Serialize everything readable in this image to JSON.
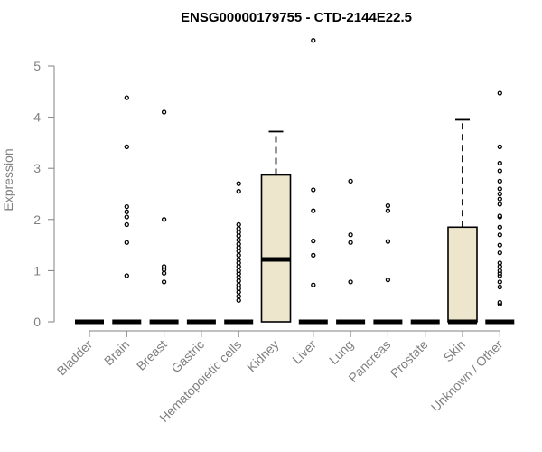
{
  "chart_data": {
    "type": "box",
    "title": "ENSG00000179755 - CTD-2144E22.5",
    "ylabel": "Expression",
    "xlabel": "",
    "ylim": [
      0,
      5.5
    ],
    "yticks": [
      0,
      1,
      2,
      3,
      4,
      5
    ],
    "categories": [
      "Bladder",
      "Brain",
      "Breast",
      "Gastric",
      "Hematopoietic cells",
      "Kidney",
      "Liver",
      "Lung",
      "Pancreas",
      "Prostate",
      "Skin",
      "Unknown / Other"
    ],
    "box_fill": "#ede6cc",
    "grid": false,
    "boxes": [
      {
        "q1": 0,
        "median": 0,
        "q3": 0,
        "whisker_low": 0,
        "whisker_high": 0,
        "outliers": []
      },
      {
        "q1": 0,
        "median": 0,
        "q3": 0,
        "whisker_low": 0,
        "whisker_high": 0,
        "outliers": [
          0.9,
          1.55,
          1.9,
          2.05,
          2.15,
          2.25,
          3.42,
          4.38
        ]
      },
      {
        "q1": 0,
        "median": 0,
        "q3": 0,
        "whisker_low": 0,
        "whisker_high": 0,
        "outliers": [
          0.78,
          0.95,
          1.02,
          1.08,
          2.0,
          4.1
        ]
      },
      {
        "q1": 0,
        "median": 0,
        "q3": 0,
        "whisker_low": 0,
        "whisker_high": 0,
        "outliers": []
      },
      {
        "q1": 0,
        "median": 0,
        "q3": 0,
        "whisker_low": 0,
        "whisker_high": 0,
        "outliers": [
          0.42,
          0.5,
          0.58,
          0.65,
          0.72,
          0.8,
          0.87,
          0.94,
          1.0,
          1.08,
          1.15,
          1.22,
          1.3,
          1.38,
          1.45,
          1.52,
          1.6,
          1.68,
          1.75,
          1.82,
          1.9,
          2.55,
          2.7
        ]
      },
      {
        "q1": 0,
        "median": 1.22,
        "q3": 2.87,
        "whisker_low": 0,
        "whisker_high": 3.72,
        "outliers": []
      },
      {
        "q1": 0,
        "median": 0,
        "q3": 0,
        "whisker_low": 0,
        "whisker_high": 0,
        "outliers": [
          0.72,
          1.3,
          1.58,
          2.17,
          2.58,
          5.5
        ]
      },
      {
        "q1": 0,
        "median": 0,
        "q3": 0,
        "whisker_low": 0,
        "whisker_high": 0,
        "outliers": [
          0.78,
          1.55,
          1.7,
          2.75
        ]
      },
      {
        "q1": 0,
        "median": 0,
        "q3": 0,
        "whisker_low": 0,
        "whisker_high": 0,
        "outliers": [
          0.82,
          1.57,
          2.17,
          2.27
        ]
      },
      {
        "q1": 0,
        "median": 0,
        "q3": 0,
        "whisker_low": 0,
        "whisker_high": 0,
        "outliers": []
      },
      {
        "q1": 0,
        "median": 0,
        "q3": 1.85,
        "whisker_low": 0,
        "whisker_high": 3.95,
        "outliers": []
      },
      {
        "q1": 0,
        "median": 0,
        "q3": 0,
        "whisker_low": 0,
        "whisker_high": 0,
        "outliers": [
          0.35,
          0.38,
          0.68,
          0.78,
          0.9,
          0.95,
          1.0,
          1.08,
          1.15,
          1.35,
          1.5,
          1.7,
          1.85,
          2.05,
          2.07,
          2.3,
          2.4,
          2.5,
          2.6,
          2.75,
          2.95,
          3.1,
          3.42,
          4.47
        ]
      }
    ]
  }
}
